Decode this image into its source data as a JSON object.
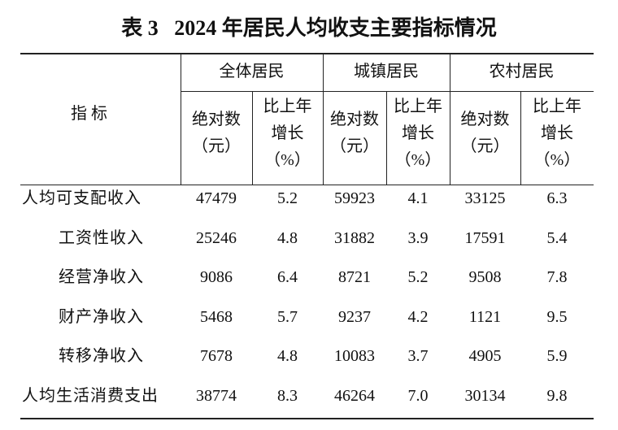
{
  "header": {
    "title": "表 3   2024 年居民人均收支主要指标情况"
  },
  "table": {
    "corner": "指 标",
    "groups": [
      "全体居民",
      "城镇居民",
      "农村居民"
    ],
    "sub_headers": [
      [
        "绝对数",
        "（元）"
      ],
      [
        "比上年",
        "增长",
        "（%）"
      ]
    ],
    "rows": [
      [
        "人均可支配收入",
        "47479",
        "5.2",
        "59923",
        "4.1",
        "33125",
        "6.3"
      ],
      [
        "工资性收入",
        "25246",
        "4.8",
        "31882",
        "3.9",
        "17591",
        "5.4"
      ],
      [
        "经营净收入",
        "9086",
        "6.4",
        "8721",
        "5.2",
        "9508",
        "7.8"
      ],
      [
        "财产净收入",
        "5468",
        "5.7",
        "9237",
        "4.2",
        "1121",
        "9.5"
      ],
      [
        "转移净收入",
        "7678",
        "4.8",
        "10083",
        "3.7",
        "4905",
        "5.9"
      ],
      [
        "人均生活消费支出",
        "38774",
        "8.3",
        "46264",
        "7.0",
        "30134",
        "9.8"
      ]
    ]
  }
}
